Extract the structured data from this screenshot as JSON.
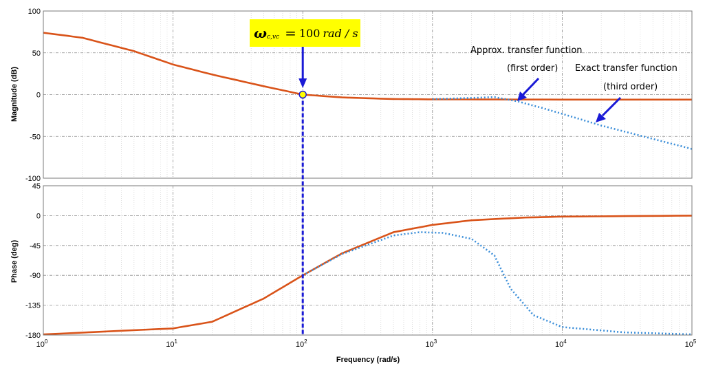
{
  "chart_data": [
    {
      "type": "line",
      "panel": "magnitude",
      "xscale": "log",
      "xlim": [
        1,
        100000
      ],
      "ylim": [
        -100,
        100
      ],
      "yticks": [
        "100",
        "50",
        "0",
        "-50",
        "-100"
      ],
      "ylabel": "Magnitude (dB)",
      "grid": true,
      "series": [
        {
          "color": "#d95319",
          "style": "solid",
          "x": [
            1,
            2,
            5,
            10,
            20,
            50,
            100,
            200,
            500,
            1000,
            10000,
            100000
          ],
          "y": [
            74,
            68,
            52,
            36,
            24,
            10,
            0,
            -3.4,
            -5.3,
            -5.7,
            -6.0,
            -6.0
          ]
        },
        {
          "color": "#3c8fd9",
          "style": "dotted",
          "x": [
            1000,
            2000,
            3000,
            4500,
            7000,
            10000,
            20000,
            50000,
            100000
          ],
          "y": [
            -5.4,
            -4.0,
            -3.0,
            -8.0,
            -16.0,
            -23.0,
            -37.0,
            -53.0,
            -65.0
          ]
        }
      ]
    },
    {
      "type": "line",
      "panel": "phase",
      "xscale": "log",
      "xlim": [
        1,
        100000
      ],
      "ylim": [
        -180,
        45
      ],
      "yticks": [
        "45",
        "0",
        "-45",
        "-90",
        "-135",
        "-180"
      ],
      "xticks": [
        "10^0",
        "10^1",
        "10^2",
        "10^3",
        "10^4",
        "10^5"
      ],
      "xlabel": "Frequency  (rad/s)",
      "ylabel": "Phase (deg)",
      "grid": true,
      "series": [
        {
          "color": "#d95319",
          "style": "solid",
          "x": [
            1,
            10,
            20,
            50,
            100,
            200,
            500,
            1000,
            2000,
            5000,
            10000,
            100000
          ],
          "y": [
            -179,
            -170,
            -160,
            -125,
            -90,
            -57,
            -25,
            -14,
            -7,
            -3,
            -1.5,
            0
          ]
        },
        {
          "color": "#3c8fd9",
          "style": "dotted",
          "x": [
            100,
            200,
            500,
            800,
            1200,
            2000,
            3000,
            4000,
            6000,
            10000,
            30000,
            100000
          ],
          "y": [
            -90,
            -58,
            -30,
            -25,
            -26,
            -35,
            -60,
            -110,
            -150,
            -168,
            -176,
            -179
          ]
        }
      ]
    }
  ],
  "crossover": {
    "omega": 100,
    "symbol": "ω",
    "subscript": "c,vc",
    "equals": "=",
    "value": "100",
    "unit": "rad / s"
  },
  "annotations": {
    "approx_line1": "Approx. transfer function",
    "approx_line2": "(first order)",
    "exact_line1": "Exact transfer function",
    "exact_line2": "(third order)"
  },
  "colors": {
    "approx": "#d95319",
    "exact": "#3c8fd9",
    "marker_line": "#1a1ad6",
    "highlight": "#ffff00"
  }
}
